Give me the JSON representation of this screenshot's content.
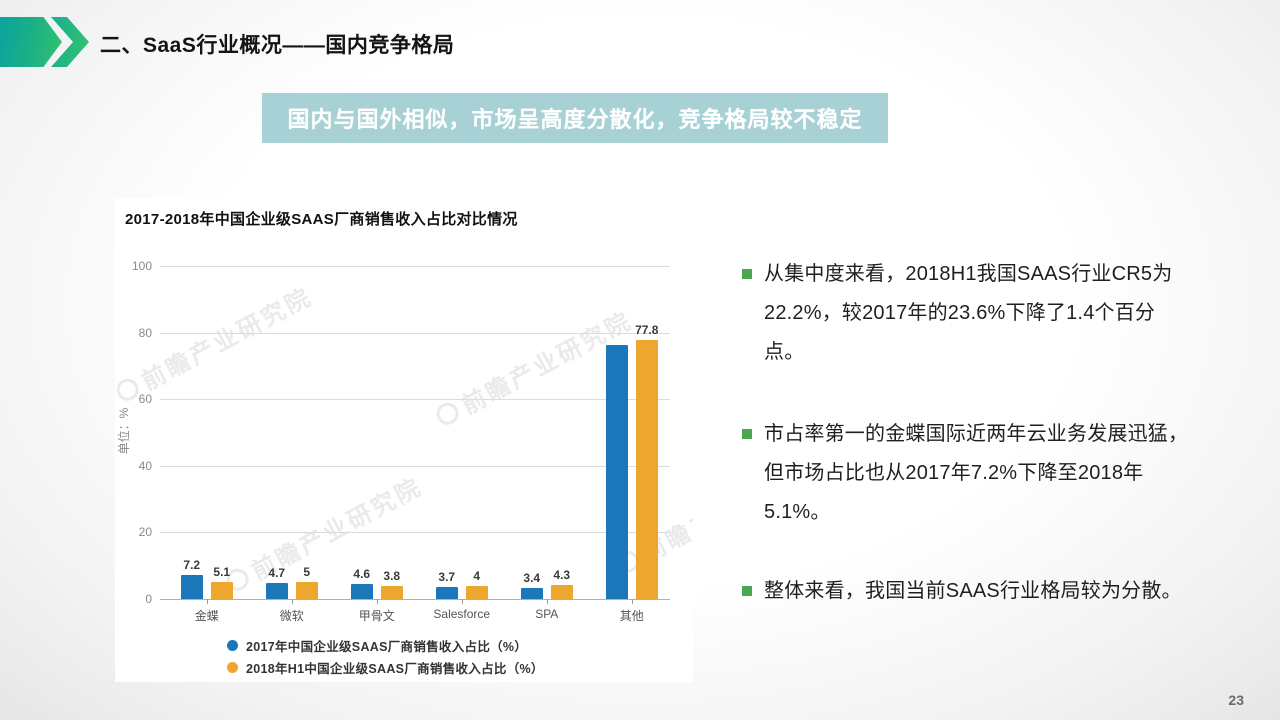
{
  "slide": {
    "title": "二、SaaS行业概况——国内竞争格局",
    "banner": "国内与国外相似，市场呈高度分散化，竞争格局较不稳定",
    "page_number": "23"
  },
  "bullets": [
    "从集中度来看，2018H1我国SAAS行业CR5为22.2%，较2017年的23.6%下降了1.4个百分点。",
    "市占率第一的金蝶国际近两年云业务发展迅猛，但市场占比也从2017年7.2%下降至2018年5.1%。",
    "整体来看，我国当前SAAS行业格局较为分散。"
  ],
  "watermark": {
    "text": "前瞻产业研究院"
  },
  "chart_data": {
    "type": "bar",
    "title": "2017-2018年中国企业级SAAS厂商销售收入占比对比情况",
    "ylabel": "单位：%",
    "categories": [
      "金蝶",
      "微软",
      "甲骨文",
      "Salesforce",
      "SPA",
      "其他"
    ],
    "series": [
      {
        "name": "2017年中国企业级SAAS厂商销售收入占比（%）",
        "color": "#1b76ba",
        "values": [
          7.2,
          4.7,
          4.6,
          3.7,
          3.4,
          76.4
        ],
        "labels": [
          "7.2",
          "4.7",
          "4.6",
          "3.7",
          "3.4",
          ""
        ]
      },
      {
        "name": "2018年H1中国企业级SAAS厂商销售收入占比（%）",
        "color": "#eda62e",
        "values": [
          5.1,
          5,
          3.8,
          4,
          4.3,
          77.8
        ],
        "labels": [
          "5.1",
          "5",
          "3.8",
          "4",
          "4.3",
          "77.8"
        ]
      }
    ],
    "ylim": [
      0,
      100
    ],
    "yticks": [
      0,
      20,
      40,
      60,
      80,
      100
    ],
    "grid": true,
    "legend_position": "bottom"
  }
}
